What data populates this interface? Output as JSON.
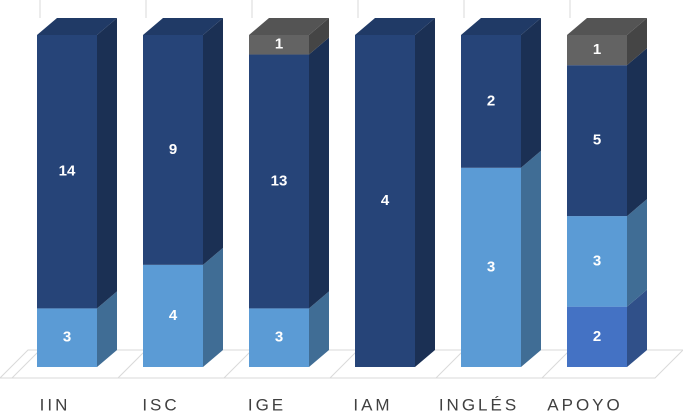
{
  "chart_data": {
    "type": "bar",
    "stacked": "percent",
    "categories": [
      "IIN",
      "ISC",
      "IGE",
      "IAM",
      "INGLÉS",
      "APOYO"
    ],
    "series": [
      {
        "color": "#4472c4",
        "values": [
          null,
          null,
          null,
          null,
          null,
          2
        ]
      },
      {
        "color": "#5b9bd5",
        "values": [
          3,
          4,
          3,
          null,
          3,
          3
        ]
      },
      {
        "color": "#264478",
        "values": [
          14,
          9,
          13,
          4,
          2,
          5
        ]
      },
      {
        "color": "#636363",
        "values": [
          null,
          null,
          1,
          null,
          null,
          1
        ]
      }
    ]
  }
}
